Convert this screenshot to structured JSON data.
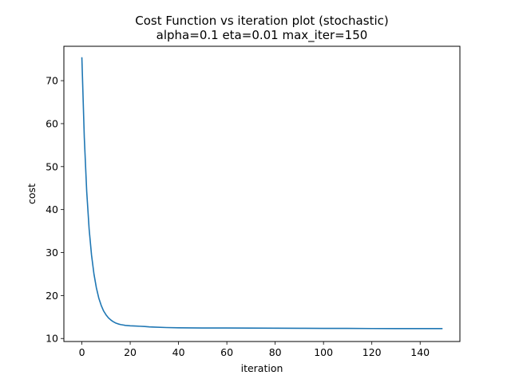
{
  "chart_data": {
    "type": "line",
    "title": "Cost Function vs iteration plot (stochastic)",
    "subtitle": "alpha=0.1 eta=0.01 max_iter=150",
    "xlabel": "iteration",
    "ylabel": "cost",
    "xlim": [
      -7.45,
      156.45
    ],
    "ylim": [
      9.3,
      78.0
    ],
    "xticks": [
      0,
      20,
      40,
      60,
      80,
      100,
      120,
      140
    ],
    "yticks": [
      10,
      20,
      30,
      40,
      50,
      60,
      70
    ],
    "grid": false,
    "line_color": "#1f77b4",
    "series": [
      {
        "x": [
          0,
          1,
          2,
          3,
          4,
          5,
          6,
          7,
          8,
          9,
          10,
          11,
          12,
          13,
          14,
          15,
          16,
          17,
          18,
          20,
          22,
          24,
          26,
          28,
          30,
          35,
          40,
          50,
          60,
          70,
          80,
          90,
          100,
          110,
          120,
          130,
          140,
          149
        ],
        "values": [
          75.3,
          56.8,
          44.2,
          35.5,
          29.4,
          25.0,
          21.8,
          19.4,
          17.7,
          16.4,
          15.5,
          14.8,
          14.3,
          13.9,
          13.6,
          13.4,
          13.25,
          13.15,
          13.05,
          12.95,
          12.9,
          12.85,
          12.8,
          12.7,
          12.65,
          12.55,
          12.5,
          12.45,
          12.45,
          12.42,
          12.4,
          12.38,
          12.35,
          12.35,
          12.32,
          12.3,
          12.3,
          12.3
        ]
      }
    ]
  }
}
